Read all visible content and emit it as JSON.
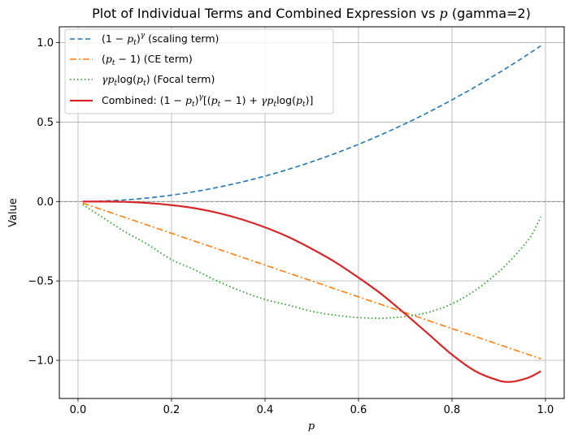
{
  "chart_data": {
    "type": "line",
    "title": "Plot of Individual Terms and Combined Expression vs p (gamma=2)",
    "xlabel": "p",
    "ylabel": "Value",
    "xlim": [
      -0.04,
      1.04
    ],
    "ylim": [
      -1.24,
      1.1
    ],
    "xticks": [
      0.0,
      0.2,
      0.4,
      0.6,
      0.8,
      1.0
    ],
    "xtick_labels": [
      "0.0",
      "0.2",
      "0.4",
      "0.6",
      "0.8",
      "1.0"
    ],
    "yticks": [
      -1.0,
      -0.5,
      0.0,
      0.5,
      1.0
    ],
    "ytick_labels": [
      "−1.0",
      "−0.5",
      "0.0",
      "0.5",
      "1.0"
    ],
    "grid": true,
    "reference_line": {
      "y": 0.0,
      "color": "#808080",
      "style": "dashed"
    },
    "legend_position": "upper-left",
    "x": [
      0.01,
      0.05,
      0.1,
      0.15,
      0.2,
      0.25,
      0.3,
      0.35,
      0.4,
      0.45,
      0.5,
      0.55,
      0.6,
      0.65,
      0.7,
      0.75,
      0.8,
      0.85,
      0.9,
      0.925,
      0.95,
      0.97,
      0.99
    ],
    "series": [
      {
        "name": "(1 − p_t)^γ (scaling term)",
        "color": "#1f77b4",
        "style": "dashed",
        "values": [
          0.0001,
          0.0025,
          0.01,
          0.0225,
          0.04,
          0.0625,
          0.09,
          0.1225,
          0.16,
          0.2025,
          0.25,
          0.3025,
          0.36,
          0.4225,
          0.49,
          0.5625,
          0.64,
          0.7225,
          0.81,
          0.8556,
          0.9025,
          0.9409,
          0.9801
        ]
      },
      {
        "name": "(p_t − 1) (CE term)",
        "color": "#ff7f0e",
        "style": "dashdot",
        "values": [
          -0.01,
          -0.05,
          -0.1,
          -0.15,
          -0.2,
          -0.25,
          -0.3,
          -0.35,
          -0.4,
          -0.45,
          -0.5,
          -0.55,
          -0.6,
          -0.65,
          -0.7,
          -0.75,
          -0.8,
          -0.85,
          -0.9,
          -0.925,
          -0.95,
          -0.97,
          -0.99
        ]
      },
      {
        "name": "γ p_t log(p_t) (Focal term)",
        "color": "#2ca02c",
        "style": "dotted",
        "values": [
          -0.0194,
          -0.0951,
          -0.1897,
          -0.2718,
          -0.3659,
          -0.4309,
          -0.5033,
          -0.5653,
          -0.6166,
          -0.6525,
          -0.6915,
          -0.7152,
          -0.731,
          -0.7348,
          -0.7239,
          -0.6971,
          -0.6438,
          -0.559,
          -0.4421,
          -0.3703,
          -0.2883,
          -0.2131,
          -0.0968
        ]
      },
      {
        "name": "Combined: (1 − p_t)^γ[(p_t − 1) + γ p_t log(p_t)]",
        "color": "#d62728",
        "style": "solid",
        "values": [
          -2.9e-06,
          -0.0004,
          -0.002,
          -0.0095,
          -0.0226,
          -0.0425,
          -0.0723,
          -0.1121,
          -0.1626,
          -0.2232,
          -0.2979,
          -0.3811,
          -0.4792,
          -0.5851,
          -0.7078,
          -0.8355,
          -0.9643,
          -1.0681,
          -1.1266,
          -1.1353,
          -1.1218,
          -1.1009,
          -1.0682
        ]
      }
    ]
  }
}
